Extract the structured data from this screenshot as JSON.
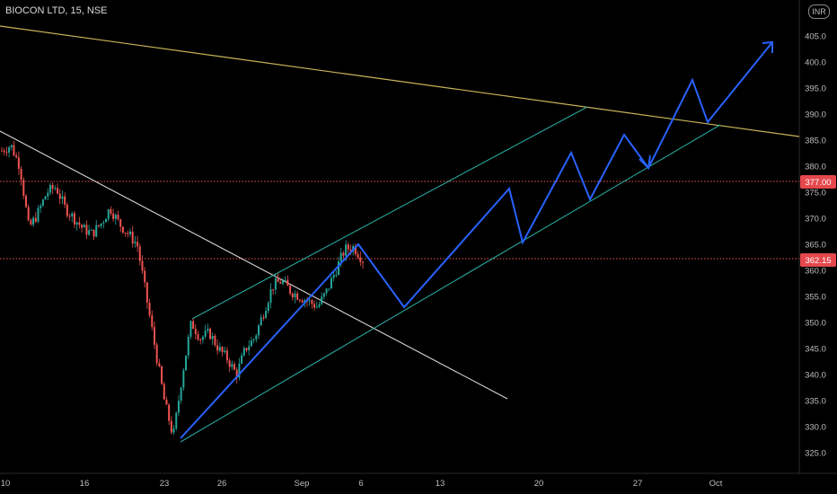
{
  "symbol_header": "BIOCON LTD, 15, NSE",
  "currency": "INR",
  "chart_data": {
    "type": "candlestick",
    "price_axis": {
      "ticks": [
        325,
        330,
        335,
        340,
        345,
        350,
        355,
        360,
        365,
        370,
        375,
        380,
        385,
        390,
        395,
        400,
        405
      ],
      "range": [
        322,
        411
      ]
    },
    "time_axis": {
      "labels": [
        "10",
        "16",
        "23",
        "26",
        "Sep",
        "6",
        "13",
        "20",
        "27",
        "Oct"
      ]
    },
    "price_badges": [
      {
        "label": "377.00",
        "value": 377.0,
        "color": "#e5484d"
      },
      {
        "label": "362.15",
        "value": 362.15,
        "color": "#e5484d"
      }
    ],
    "close_path": [
      383,
      384,
      380,
      368,
      371,
      375,
      376,
      372,
      370,
      368,
      367,
      369,
      372,
      369,
      367,
      365,
      355,
      345,
      335,
      328,
      340,
      350,
      347,
      348,
      345,
      343,
      340,
      345,
      347,
      352,
      357,
      358,
      356,
      355,
      354,
      353,
      356,
      360,
      364,
      364.5,
      362
    ],
    "colors": {
      "up": "#26a69a",
      "down": "#ef5350",
      "projection": "#2962ff",
      "channel": "#26a69a",
      "yellow_line": "#c9b458",
      "white_line": "#d6d6d6",
      "level_line": "#ef5350"
    }
  }
}
